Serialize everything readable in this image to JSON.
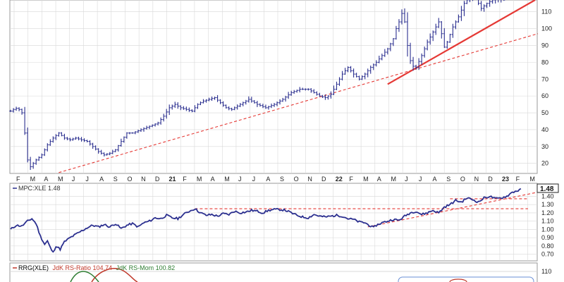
{
  "chart_data": [
    {
      "type": "ohlc",
      "grid": true,
      "ylim": [
        14,
        117
      ],
      "yticks": [
        "20",
        "30",
        "40",
        "50",
        "60",
        "70",
        "80",
        "90",
        "100",
        "110"
      ],
      "xlabels": [
        "F",
        "M",
        "A",
        "M",
        "J",
        "J",
        "A",
        "S",
        "O",
        "N",
        "D",
        "21",
        "F",
        "M",
        "A",
        "M",
        "J",
        "J",
        "A",
        "S",
        "O",
        "N",
        "D",
        "22",
        "F",
        "M",
        "A",
        "M",
        "J",
        "J",
        "A",
        "S",
        "O",
        "N",
        "D",
        "23",
        "F",
        "M"
      ],
      "year_labels": [
        "21",
        "22",
        "23"
      ],
      "price_anchors": [
        [
          0,
          51
        ],
        [
          2,
          52
        ],
        [
          5,
          53
        ],
        [
          8,
          50
        ],
        [
          10,
          38
        ],
        [
          12,
          22
        ],
        [
          14,
          18
        ],
        [
          18,
          22
        ],
        [
          22,
          25
        ],
        [
          26,
          31
        ],
        [
          30,
          35
        ],
        [
          34,
          38
        ],
        [
          38,
          35
        ],
        [
          42,
          34
        ],
        [
          46,
          35
        ],
        [
          50,
          34
        ],
        [
          54,
          33
        ],
        [
          58,
          30
        ],
        [
          62,
          27
        ],
        [
          66,
          25
        ],
        [
          70,
          26
        ],
        [
          74,
          28
        ],
        [
          78,
          33
        ],
        [
          82,
          38
        ],
        [
          86,
          38
        ],
        [
          92,
          40
        ],
        [
          98,
          42
        ],
        [
          104,
          44
        ],
        [
          108,
          48
        ],
        [
          112,
          53
        ],
        [
          116,
          55
        ],
        [
          120,
          53
        ],
        [
          124,
          52
        ],
        [
          128,
          51
        ],
        [
          132,
          55
        ],
        [
          136,
          57
        ],
        [
          140,
          58
        ],
        [
          144,
          59
        ],
        [
          148,
          56
        ],
        [
          152,
          53
        ],
        [
          156,
          52
        ],
        [
          162,
          55
        ],
        [
          168,
          58
        ],
        [
          174,
          55
        ],
        [
          180,
          53
        ],
        [
          186,
          55
        ],
        [
          192,
          58
        ],
        [
          198,
          62
        ],
        [
          204,
          64
        ],
        [
          210,
          64
        ],
        [
          214,
          62
        ],
        [
          218,
          60
        ],
        [
          222,
          59
        ],
        [
          226,
          61
        ],
        [
          230,
          67
        ],
        [
          234,
          73
        ],
        [
          238,
          77
        ],
        [
          242,
          73
        ],
        [
          246,
          70
        ],
        [
          250,
          73
        ],
        [
          254,
          77
        ],
        [
          258,
          80
        ],
        [
          262,
          84
        ],
        [
          266,
          88
        ],
        [
          270,
          94
        ],
        [
          272,
          100
        ],
        [
          275,
          106
        ],
        [
          277,
          112
        ],
        [
          279,
          96
        ],
        [
          281,
          84
        ],
        [
          283,
          78
        ],
        [
          286,
          77
        ],
        [
          290,
          84
        ],
        [
          294,
          92
        ],
        [
          298,
          98
        ],
        [
          302,
          104
        ],
        [
          304,
          97
        ],
        [
          306,
          89
        ],
        [
          308,
          92
        ],
        [
          312,
          101
        ],
        [
          316,
          107
        ],
        [
          320,
          115
        ],
        [
          324,
          119
        ],
        [
          328,
          118
        ],
        [
          332,
          112
        ],
        [
          336,
          115
        ],
        [
          340,
          117
        ],
        [
          344,
          118
        ],
        [
          348,
          117
        ]
      ],
      "trendlines": [
        {
          "style": "dashed",
          "from": [
            34,
            14.5
          ],
          "to": [
            372,
            97
          ]
        },
        {
          "style": "solid",
          "from": [
            266,
            67
          ],
          "to": [
            370,
            117
          ]
        }
      ]
    },
    {
      "type": "line",
      "label": "MPC:XLE 1.48",
      "last_value_label": "1.48",
      "grid": true,
      "ylim": [
        0.62,
        1.54
      ],
      "yticks": [
        "0.70",
        "0.80",
        "0.90",
        "1.00",
        "1.10",
        "1.20",
        "1.30",
        "1.40"
      ],
      "series_anchors": [
        [
          0,
          1.0
        ],
        [
          4,
          1.05
        ],
        [
          8,
          1.04
        ],
        [
          12,
          1.1
        ],
        [
          15,
          1.13
        ],
        [
          18,
          1.07
        ],
        [
          21,
          0.92
        ],
        [
          24,
          0.82
        ],
        [
          26,
          0.86
        ],
        [
          28,
          0.78
        ],
        [
          30,
          0.72
        ],
        [
          32,
          0.8
        ],
        [
          35,
          0.76
        ],
        [
          38,
          0.85
        ],
        [
          42,
          0.9
        ],
        [
          46,
          0.94
        ],
        [
          50,
          0.98
        ],
        [
          54,
          1.02
        ],
        [
          58,
          1.05
        ],
        [
          62,
          1.03
        ],
        [
          66,
          1.06
        ],
        [
          70,
          1.03
        ],
        [
          74,
          1.07
        ],
        [
          78,
          1.01
        ],
        [
          82,
          1.05
        ],
        [
          86,
          1.07
        ],
        [
          90,
          1.03
        ],
        [
          94,
          1.08
        ],
        [
          98,
          1.1
        ],
        [
          102,
          1.14
        ],
        [
          106,
          1.13
        ],
        [
          110,
          1.17
        ],
        [
          114,
          1.14
        ],
        [
          118,
          1.13
        ],
        [
          122,
          1.18
        ],
        [
          126,
          1.22
        ],
        [
          130,
          1.25
        ],
        [
          134,
          1.2
        ],
        [
          138,
          1.17
        ],
        [
          142,
          1.18
        ],
        [
          146,
          1.16
        ],
        [
          150,
          1.19
        ],
        [
          154,
          1.18
        ],
        [
          158,
          1.22
        ],
        [
          162,
          1.2
        ],
        [
          166,
          1.21
        ],
        [
          170,
          1.23
        ],
        [
          174,
          1.22
        ],
        [
          178,
          1.2
        ],
        [
          182,
          1.23
        ],
        [
          186,
          1.24
        ],
        [
          190,
          1.24
        ],
        [
          194,
          1.23
        ],
        [
          198,
          1.2
        ],
        [
          202,
          1.17
        ],
        [
          206,
          1.15
        ],
        [
          210,
          1.14
        ],
        [
          214,
          1.18
        ],
        [
          218,
          1.16
        ],
        [
          222,
          1.15
        ],
        [
          226,
          1.16
        ],
        [
          230,
          1.17
        ],
        [
          234,
          1.16
        ],
        [
          238,
          1.13
        ],
        [
          242,
          1.12
        ],
        [
          246,
          1.09
        ],
        [
          250,
          1.08
        ],
        [
          254,
          1.04
        ],
        [
          256,
          1.02
        ],
        [
          258,
          1.05
        ],
        [
          262,
          1.08
        ],
        [
          266,
          1.1
        ],
        [
          270,
          1.12
        ],
        [
          274,
          1.11
        ],
        [
          278,
          1.16
        ],
        [
          282,
          1.2
        ],
        [
          286,
          1.22
        ],
        [
          290,
          1.18
        ],
        [
          294,
          1.2
        ],
        [
          298,
          1.23
        ],
        [
          302,
          1.2
        ],
        [
          306,
          1.27
        ],
        [
          310,
          1.3
        ],
        [
          314,
          1.35
        ],
        [
          318,
          1.33
        ],
        [
          322,
          1.38
        ],
        [
          326,
          1.36
        ],
        [
          330,
          1.33
        ],
        [
          334,
          1.38
        ],
        [
          338,
          1.4
        ],
        [
          342,
          1.37
        ],
        [
          346,
          1.38
        ],
        [
          350,
          1.4
        ],
        [
          354,
          1.45
        ],
        [
          358,
          1.47
        ],
        [
          360,
          1.48
        ]
      ],
      "trendlines": [
        {
          "style": "dashed",
          "from": [
            130,
            1.25
          ],
          "to": [
            365,
            1.25
          ]
        },
        {
          "style": "dashed",
          "from": [
            252,
            1.03
          ],
          "to": [
            372,
            1.45
          ]
        },
        {
          "style": "dashed",
          "from": [
            310,
            1.37
          ],
          "to": [
            365,
            1.37
          ]
        }
      ]
    },
    {
      "type": "line",
      "legend": [
        {
          "text": "RRG(XLE)",
          "color": "#333333"
        },
        {
          "text": "JdK RS-Ratio 104.74",
          "color": "#c0392b"
        },
        {
          "text": "JdK RS-Mom 100.82",
          "color": "#2e7d32"
        }
      ],
      "ytick": "110"
    }
  ],
  "colors": {
    "price": "#2b2f8f",
    "trend": "#e53935",
    "grid": "#d8d8d8",
    "axis": "#555555"
  }
}
